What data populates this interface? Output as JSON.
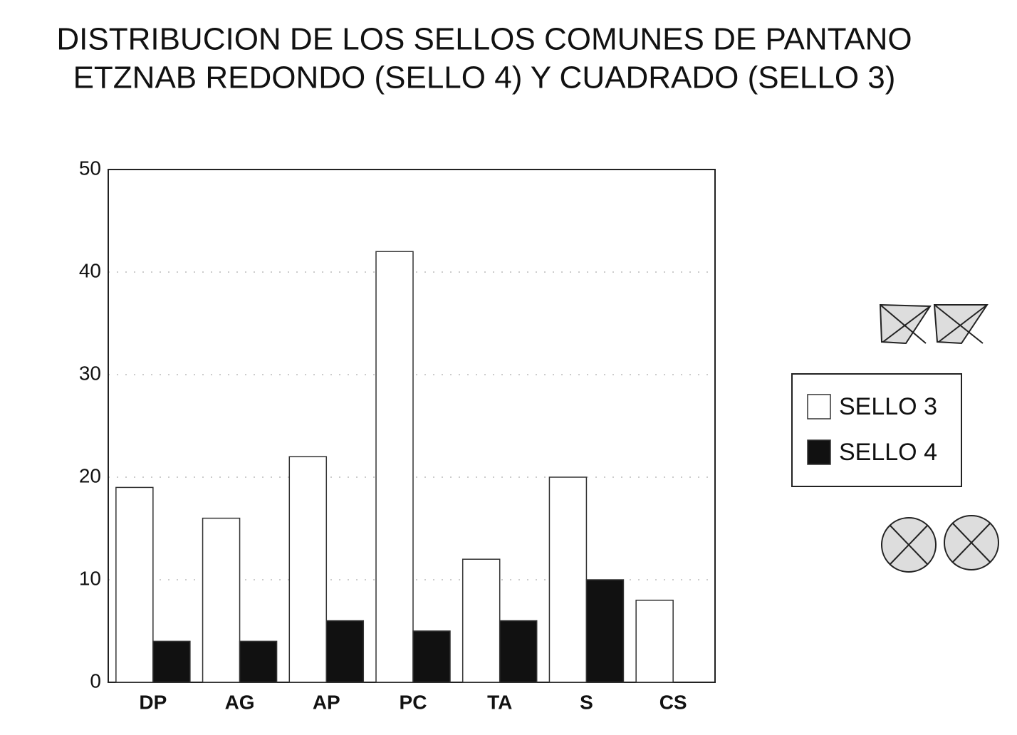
{
  "chart_data": {
    "type": "bar",
    "title": [
      "DISTRIBUCION DE LOS SELLOS COMUNES DE PANTANO",
      "ETZNAB REDONDO (SELLO 4) Y CUADRADO (SELLO 3)"
    ],
    "categories": [
      "DP",
      "AG",
      "AP",
      "PC",
      "TA",
      "S",
      "CS"
    ],
    "series": [
      {
        "name": "SELLO 3",
        "color": "#ffffff",
        "values": [
          19,
          16,
          22,
          42,
          12,
          20,
          8
        ]
      },
      {
        "name": "SELLO 4",
        "color": "#111111",
        "values": [
          4,
          4,
          6,
          5,
          6,
          10,
          0
        ]
      }
    ],
    "ylim": [
      0,
      50
    ],
    "yticks": [
      0,
      10,
      20,
      30,
      40,
      50
    ],
    "grid": true,
    "legend": "right"
  }
}
